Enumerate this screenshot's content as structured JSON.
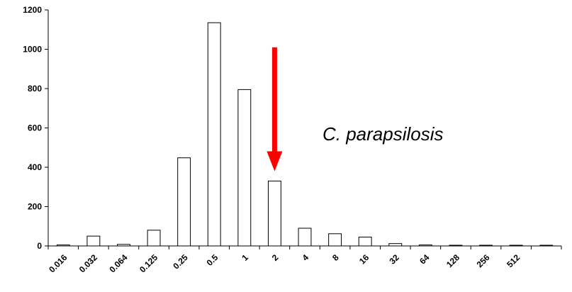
{
  "chart_data": {
    "type": "bar",
    "title": "",
    "xlabel": "",
    "ylabel": "",
    "categories": [
      "0.016",
      "0.032",
      "0.064",
      "0.125",
      "0.25",
      "0.5",
      "1",
      "2",
      "4",
      "8",
      "16",
      "32",
      "64",
      "128",
      "256",
      "512",
      ""
    ],
    "values": [
      5,
      50,
      8,
      80,
      448,
      1135,
      795,
      330,
      90,
      62,
      45,
      12,
      5,
      3,
      3,
      0,
      3
    ],
    "ylim": [
      0,
      1200
    ],
    "yticks": [
      "0",
      "200",
      "400",
      "600",
      "800",
      "1000",
      "1200"
    ],
    "grid": false,
    "legend": "none",
    "bar_fill": "#ffffff",
    "bar_stroke": "#000000",
    "annotation": {
      "text": "C. parapsilosis",
      "arrow_color": "#ff0000",
      "arrow_from_y": 1010,
      "arrow_to_y": 380,
      "arrow_category_position": 7.5
    }
  }
}
